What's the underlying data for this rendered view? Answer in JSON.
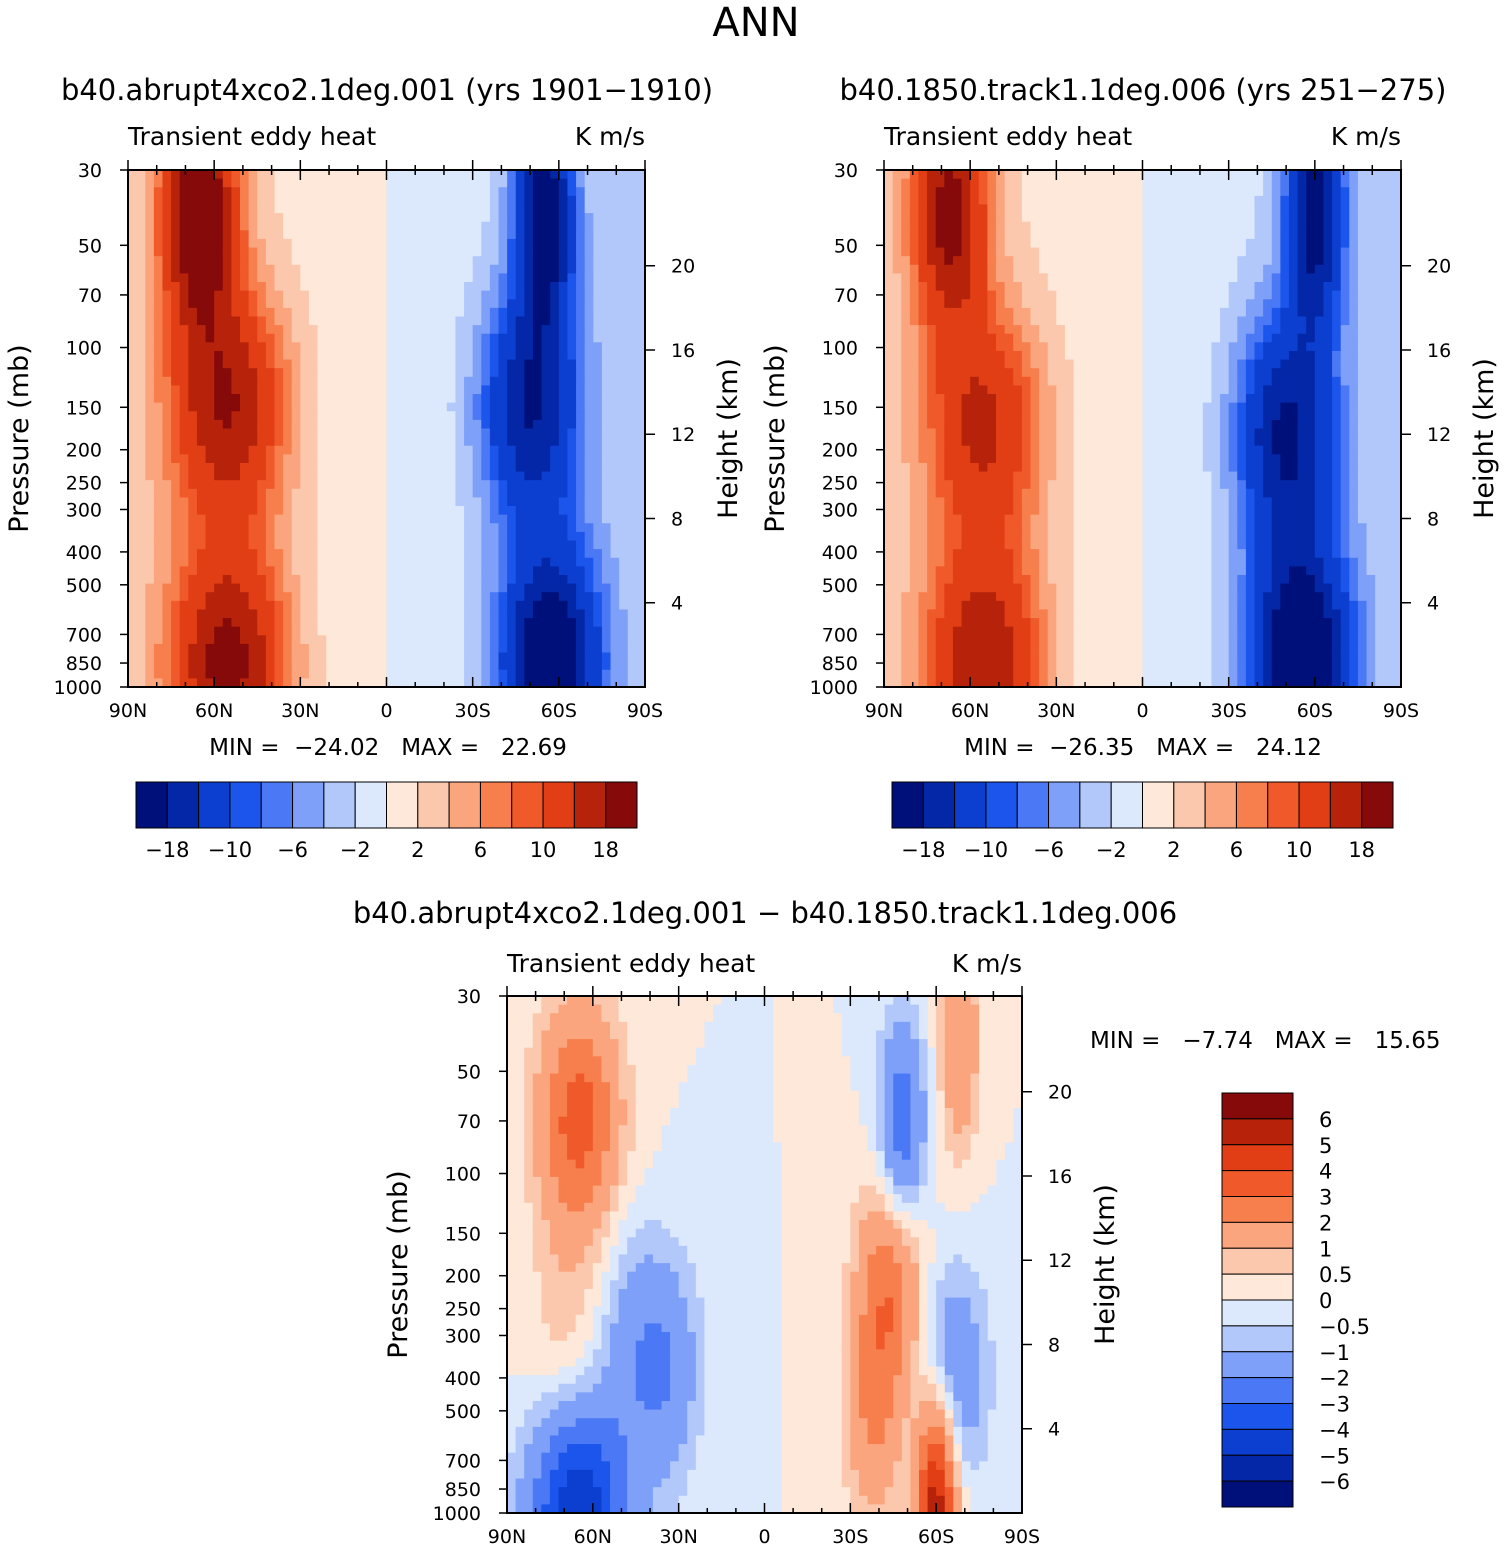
{
  "page_title": "ANN",
  "colors": {
    "palette": [
      "#00107a",
      "#0427a8",
      "#0c3fd0",
      "#1c55ec",
      "#4b78f5",
      "#7ea0f8",
      "#b2c8fb",
      "#dce9fc",
      "#fde8d9",
      "#fcc8ad",
      "#fba57f",
      "#f77f4d",
      "#f0592a",
      "#e23e15",
      "#b6230a",
      "#860a0a"
    ]
  },
  "panels": [
    {
      "title": "b40.abrupt4xco2.1deg.001 (yrs 1901−1910)",
      "subtitle_left": "Transient eddy heat",
      "subtitle_right": "K m/s",
      "min_text": "MIN =  −24.02   MAX =   22.69",
      "ylabel": "Pressure (mb)",
      "y2label": "Height (km)"
    },
    {
      "title": "b40.1850.track1.1deg.006 (yrs 251−275)",
      "subtitle_left": "Transient eddy heat",
      "subtitle_right": "K m/s",
      "min_text": "MIN =  −26.35   MAX =   24.12",
      "ylabel": "Pressure (mb)",
      "y2label": "Height (km)"
    },
    {
      "title": "b40.abrupt4xco2.1deg.001 − b40.1850.track1.1deg.006",
      "subtitle_left": "Transient eddy heat",
      "subtitle_right": "K m/s",
      "min_text": "MIN =   −7.74   MAX =   15.65",
      "ylabel": "Pressure (mb)",
      "y2label": "Height (km)"
    }
  ],
  "chart_data": [
    {
      "type": "heatmap",
      "title": "b40.abrupt4xco2.1deg.001 (yrs 1901−1910)",
      "xlabel": "",
      "ylabel": "Pressure (mb)",
      "y2label": "Height (km)",
      "x_ticks": [
        "90N",
        "60N",
        "30N",
        "0",
        "30S",
        "60S",
        "90S"
      ],
      "y_ticks": [
        "30",
        "50",
        "70",
        "100",
        "150",
        "200",
        "250",
        "300",
        "400",
        "500",
        "700",
        "850",
        "1000"
      ],
      "y2_ticks": [
        "20",
        "16",
        "12",
        "8",
        "4"
      ],
      "xlim": [
        90,
        -90
      ],
      "ylim": [
        1000,
        30
      ],
      "colorbar_labels": [
        "−18",
        "−10",
        "−6",
        "−2",
        "2",
        "6",
        "10",
        "18"
      ],
      "min": -24.02,
      "max": 22.69,
      "features": [
        {
          "lat": 65,
          "p": 40,
          "value": 22,
          "spread_lat": 9
        },
        {
          "lat": 55,
          "p": 150,
          "value": 16,
          "spread_lat": 14
        },
        {
          "lat": 55,
          "p": 850,
          "value": 18,
          "spread_lat": 14
        },
        {
          "lat": -55,
          "p": 40,
          "value": -20,
          "spread_lat": 7
        },
        {
          "lat": -50,
          "p": 150,
          "value": -16,
          "spread_lat": 12
        },
        {
          "lat": -57,
          "p": 850,
          "value": -22,
          "spread_lat": 12
        }
      ]
    },
    {
      "type": "heatmap",
      "title": "b40.1850.track1.1deg.006 (yrs 251−275)",
      "xlabel": "",
      "ylabel": "Pressure (mb)",
      "y2label": "Height (km)",
      "x_ticks": [
        "90N",
        "60N",
        "30N",
        "0",
        "30S",
        "60S",
        "90S"
      ],
      "y_ticks": [
        "30",
        "50",
        "70",
        "100",
        "150",
        "200",
        "250",
        "300",
        "400",
        "500",
        "700",
        "850",
        "1000"
      ],
      "y2_ticks": [
        "20",
        "16",
        "12",
        "8",
        "4"
      ],
      "xlim": [
        90,
        -90
      ],
      "ylim": [
        1000,
        30
      ],
      "colorbar_labels": [
        "−18",
        "−10",
        "−6",
        "−2",
        "2",
        "6",
        "10",
        "18"
      ],
      "min": -26.35,
      "max": 24.12,
      "features": [
        {
          "lat": 67,
          "p": 40,
          "value": 18,
          "spread_lat": 9
        },
        {
          "lat": 55,
          "p": 170,
          "value": 13,
          "spread_lat": 14
        },
        {
          "lat": 55,
          "p": 850,
          "value": 16,
          "spread_lat": 14
        },
        {
          "lat": -60,
          "p": 40,
          "value": -19,
          "spread_lat": 7
        },
        {
          "lat": -50,
          "p": 180,
          "value": -17,
          "spread_lat": 12
        },
        {
          "lat": -55,
          "p": 850,
          "value": -24,
          "spread_lat": 12
        }
      ]
    },
    {
      "type": "heatmap",
      "title": "b40.abrupt4xco2.1deg.001 − b40.1850.track1.1deg.006",
      "xlabel": "",
      "ylabel": "Pressure (mb)",
      "y2label": "Height (km)",
      "x_ticks": [
        "90N",
        "60N",
        "30N",
        "0",
        "30S",
        "60S",
        "90S"
      ],
      "y_ticks": [
        "30",
        "50",
        "70",
        "100",
        "150",
        "200",
        "250",
        "300",
        "400",
        "500",
        "700",
        "850",
        "1000"
      ],
      "y2_ticks": [
        "20",
        "16",
        "12",
        "8",
        "4"
      ],
      "xlim": [
        90,
        -90
      ],
      "ylim": [
        1000,
        30
      ],
      "colorbar_labels": [
        "6",
        "5",
        "4",
        "3",
        "2",
        "1",
        "0.5",
        "0",
        "−0.5",
        "−1",
        "−2",
        "−3",
        "−4",
        "−5",
        "−6"
      ],
      "levels": [
        -6,
        -5,
        -4,
        -3,
        -2,
        -1,
        -0.5,
        0,
        0.5,
        1,
        2,
        3,
        4,
        5,
        6
      ],
      "min": -7.74,
      "max": 15.65,
      "features": [
        {
          "lat": 65,
          "p": 70,
          "value": 3.5,
          "spread_lat": 10
        },
        {
          "lat": 65,
          "p": 350,
          "value": 1.2,
          "spread_lat": 12
        },
        {
          "lat": 50,
          "p": 300,
          "value": -1.3,
          "spread_lat": 10
        },
        {
          "lat": 35,
          "p": 380,
          "value": -1.8,
          "spread_lat": 9
        },
        {
          "lat": -48,
          "p": 80,
          "value": -3.0,
          "spread_lat": 6
        },
        {
          "lat": -45,
          "p": 200,
          "value": 3.0,
          "spread_lat": 8
        },
        {
          "lat": -38,
          "p": 500,
          "value": 2.0,
          "spread_lat": 7
        },
        {
          "lat": -65,
          "p": 400,
          "value": -2.0,
          "spread_lat": 9
        },
        {
          "lat": -68,
          "p": 40,
          "value": 2.0,
          "spread_lat": 5
        },
        {
          "lat": 65,
          "p": 990,
          "value": -5.0,
          "spread_lat": 12
        },
        {
          "lat": -60,
          "p": 990,
          "value": 6.0,
          "spread_lat": 5
        }
      ]
    }
  ]
}
